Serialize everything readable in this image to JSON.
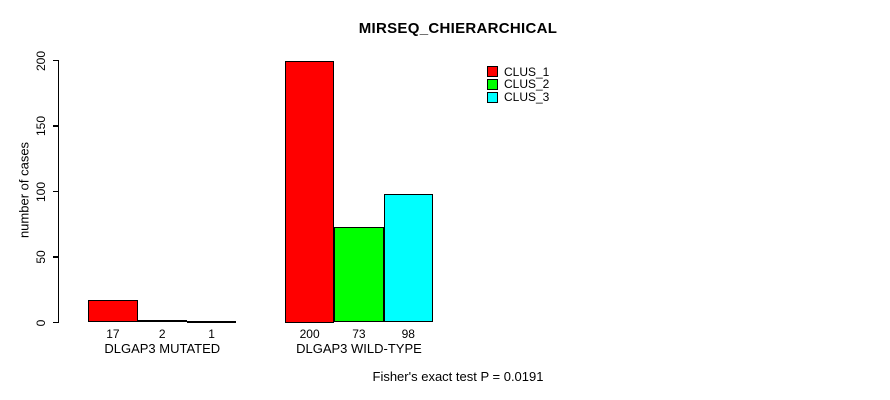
{
  "chart_data": {
    "type": "bar",
    "title": "MIRSEQ_CHIERARCHICAL",
    "ylabel": "number of cases",
    "xlabel": "",
    "categories": [
      "DLGAP3 MUTATED",
      "DLGAP3 WILD-TYPE"
    ],
    "series": [
      {
        "name": "CLUS_1",
        "color": "#FF0000",
        "values": [
          17,
          200
        ]
      },
      {
        "name": "CLUS_2",
        "color": "#00FF00",
        "values": [
          2,
          73
        ]
      },
      {
        "name": "CLUS_3",
        "color": "#00FFFF",
        "values": [
          1,
          98
        ]
      }
    ],
    "yticks": [
      0,
      50,
      100,
      150,
      200
    ],
    "ylim": [
      0,
      200
    ],
    "grid": false,
    "legend_position": "top-right",
    "annotation": "Fisher's exact test P = 0.0191",
    "bar_border_color": "#000000",
    "background_color": "#FFFFFF"
  }
}
